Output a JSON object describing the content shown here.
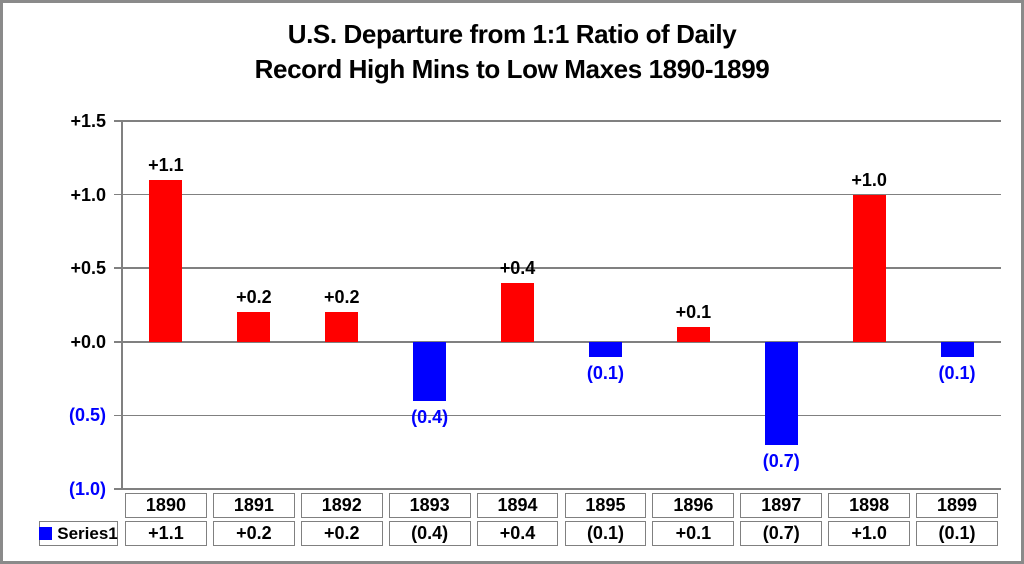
{
  "title": {
    "line1": "U.S. Departure from 1:1 Ratio of Daily",
    "line2": "Record High Mins to Low Maxes 1890-1899"
  },
  "chart_data": {
    "type": "bar",
    "title": "U.S. Departure from 1:1 Ratio of Daily Record High Mins to Low Maxes 1890-1899",
    "categories": [
      "1890",
      "1891",
      "1892",
      "1893",
      "1894",
      "1895",
      "1896",
      "1897",
      "1898",
      "1899"
    ],
    "series": [
      {
        "name": "Series1",
        "values": [
          1.1,
          0.2,
          0.2,
          -0.4,
          0.4,
          -0.1,
          0.1,
          -0.7,
          1.0,
          -0.1
        ]
      }
    ],
    "value_labels": [
      "+1.1",
      "+0.2",
      "+0.2",
      "(0.4)",
      "+0.4",
      "(0.1)",
      "+0.1",
      "(0.7)",
      "+1.0",
      "(0.1)"
    ],
    "ylim": [
      -1.0,
      1.5
    ],
    "yticks": [
      {
        "value": 1.5,
        "label": "+1.5"
      },
      {
        "value": 1.0,
        "label": "+1.0"
      },
      {
        "value": 0.5,
        "label": "+0.5"
      },
      {
        "value": 0.0,
        "label": "+0.0"
      },
      {
        "value": -0.5,
        "label": "(0.5)"
      },
      {
        "value": -1.0,
        "label": "(1.0)"
      }
    ],
    "grid": true,
    "legend_position": "table-left",
    "data_table_shown": true,
    "colors": {
      "positive_bar": "#ff0000",
      "negative_bar": "#0000ff",
      "positive_text": "#000000",
      "negative_text": "#0000ff",
      "grid": "#808080",
      "table_border": "#808080",
      "legend_swatch": "#0000ff",
      "frame_border": "#8a8a8a",
      "title_text": "#000000"
    }
  }
}
